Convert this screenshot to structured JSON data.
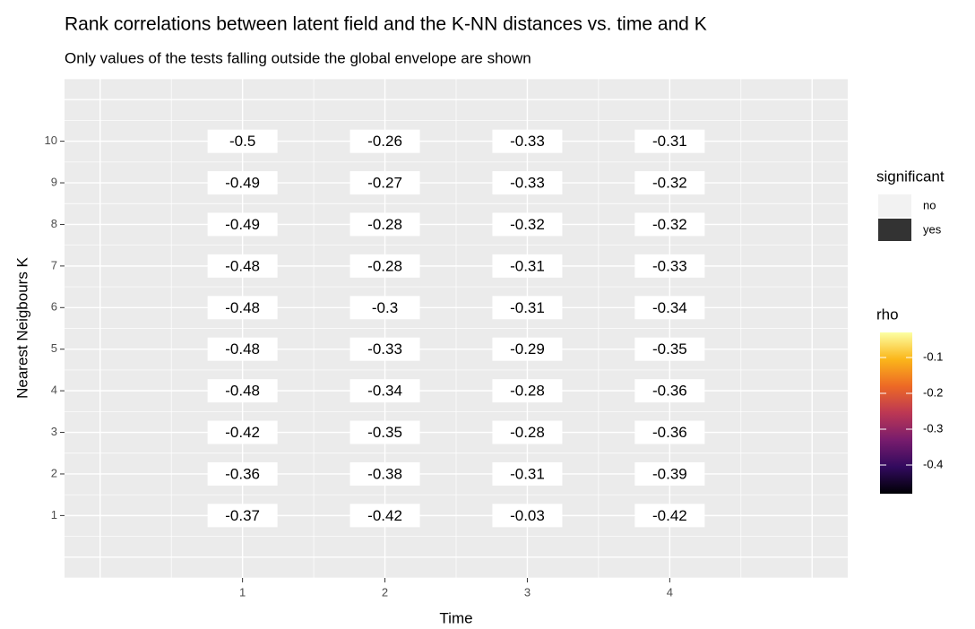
{
  "chart_data": {
    "type": "heatmap",
    "title": "Rank correlations between latent field and the K-NN distances vs. time and K",
    "subtitle": "Only values of the tests falling outside the global envelope are shown",
    "x_label": "Time",
    "y_label": "Nearest Neigbours K",
    "x": [
      1,
      2,
      3,
      4
    ],
    "y": [
      1,
      2,
      3,
      4,
      5,
      6,
      7,
      8,
      9,
      10
    ],
    "values": [
      [
        -0.37,
        -0.36,
        -0.42,
        -0.48,
        -0.48,
        -0.48,
        -0.48,
        -0.49,
        -0.49,
        -0.5
      ],
      [
        -0.42,
        -0.38,
        -0.35,
        -0.34,
        -0.33,
        -0.3,
        -0.28,
        -0.28,
        -0.27,
        -0.26
      ],
      [
        -0.03,
        -0.31,
        -0.28,
        -0.28,
        -0.29,
        -0.31,
        -0.31,
        -0.32,
        -0.33,
        -0.33
      ],
      [
        -0.42,
        -0.39,
        -0.36,
        -0.36,
        -0.35,
        -0.34,
        -0.33,
        -0.32,
        -0.32,
        -0.31
      ]
    ],
    "xlim": [
      -0.25,
      5.25
    ],
    "ylim": [
      -0.5,
      11.5
    ],
    "xticks": [
      1,
      2,
      3,
      4
    ],
    "yticks": [
      1,
      2,
      3,
      4,
      5,
      6,
      7,
      8,
      9,
      10
    ],
    "grid": true,
    "significant_legend": {
      "title": "significant",
      "labels": [
        "no",
        "yes"
      ],
      "colors": [
        "#f2f2f2",
        "#333333"
      ]
    },
    "colorbar": {
      "title": "rho",
      "lim": [
        -0.48,
        -0.03
      ],
      "ticks": [
        -0.1,
        -0.2,
        -0.3,
        -0.4
      ],
      "colors": [
        "#000004",
        "#320a5e",
        "#781c6d",
        "#bc3754",
        "#ed6925",
        "#fbb61a",
        "#fcffa4"
      ]
    }
  }
}
